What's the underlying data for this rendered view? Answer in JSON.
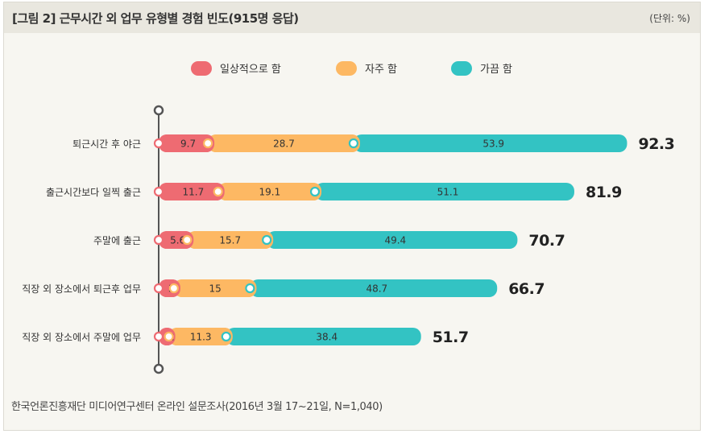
{
  "header": {
    "title": "[그림 2]  근무시간 외 업무 유형별 경험 빈도(915명 응답)",
    "unit": "(단위: %)"
  },
  "footer": {
    "source": "한국언론진흥재단 미디어연구센터 온라인 설문조사(2016년 3월 17~21일, N=1,040)"
  },
  "colors": {
    "series1": "#ee6b72",
    "series2": "#fdb863",
    "series3": "#33c3c3",
    "axis": "#555555"
  },
  "chart_data": {
    "type": "bar",
    "stacked": true,
    "orientation": "horizontal",
    "title": "근무시간 외 업무 유형별 경험 빈도(915명 응답)",
    "unit": "%",
    "categories": [
      "퇴근시간 후 야근",
      "출근시간보다 일찍 출근",
      "주말에 출근",
      "직장 외 장소에서 퇴근후 업무",
      "직장 외 장소에서 주말에 업무"
    ],
    "series": [
      {
        "name": "일상적으로 함",
        "values": [
          9.7,
          11.7,
          5.6,
          3,
          2
        ]
      },
      {
        "name": "자주 함",
        "values": [
          28.7,
          19.1,
          15.7,
          15,
          11.3
        ]
      },
      {
        "name": "가끔 함",
        "values": [
          53.9,
          51.1,
          49.4,
          48.7,
          38.4
        ]
      }
    ],
    "totals": [
      92.3,
      81.9,
      70.7,
      66.7,
      51.7
    ],
    "legend_position": "top"
  }
}
